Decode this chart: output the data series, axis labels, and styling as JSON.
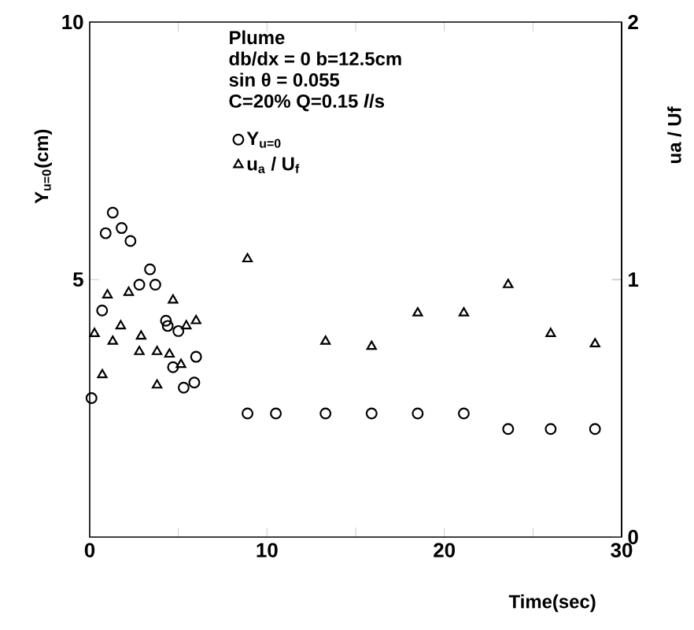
{
  "chart_data": {
    "type": "scatter",
    "xlabel": "Time(sec)",
    "ylabel": "Y$_{u=0}$(cm)",
    "y2label": "ua / Uf",
    "xlim": [
      0,
      30
    ],
    "xticks": [
      0,
      {
        "value": 5,
        "label": null
      },
      10,
      {
        "value": 15,
        "label": null
      },
      20,
      {
        "value": 25,
        "label": null
      },
      30
    ],
    "ylim": [
      0,
      10
    ],
    "yticks": [
      5,
      10
    ],
    "y2lim": [
      0,
      2
    ],
    "y2ticks": [
      0,
      1,
      2
    ],
    "legend": "top",
    "grid": false,
    "annotations": [
      "Plume",
      "db/dx = 0   b=12.5cm",
      "sin θ = 0.055",
      "C=20%   Q=0.15 *l*/s"
    ],
    "series": [
      {
        "name": "Y$_{u=0}$",
        "color": "#000000",
        "marker": "circle",
        "x": [
          0.1,
          0.7,
          0.9,
          1.3,
          1.8,
          2.3,
          2.8,
          3.4,
          3.7,
          4.3,
          4.4,
          4.7,
          5.0,
          5.3,
          5.9,
          6.0,
          8.9,
          10.5,
          13.3,
          15.9,
          18.5,
          21.1,
          23.6,
          26.0,
          28.5
        ],
        "values": [
          2.7,
          4.4,
          5.9,
          6.3,
          6.0,
          5.75,
          4.9,
          5.2,
          4.9,
          4.2,
          4.1,
          3.3,
          4.0,
          2.9,
          3.0,
          3.5,
          2.4,
          2.4,
          2.4,
          2.4,
          2.4,
          2.4,
          2.1,
          2.1,
          2.1
        ]
      },
      {
        "name": "u$_{a}$ / U$_{f}$",
        "color": "#000000",
        "marker": "triangle",
        "axis": "y2",
        "x": [
          0.27,
          0.71,
          1.0,
          1.3,
          1.75,
          2.2,
          2.8,
          2.9,
          3.8,
          3.8,
          4.5,
          4.7,
          5.15,
          5.45,
          6.0,
          8.9,
          13.3,
          15.9,
          18.5,
          21.1,
          23.6,
          26.0,
          28.5
        ],
        "values": [
          0.79,
          0.63,
          0.94,
          0.76,
          0.82,
          0.95,
          0.72,
          0.78,
          0.72,
          0.59,
          0.71,
          0.92,
          0.67,
          0.82,
          0.84,
          1.08,
          0.76,
          0.74,
          0.87,
          0.87,
          0.98,
          0.79,
          0.75
        ]
      }
    ]
  }
}
